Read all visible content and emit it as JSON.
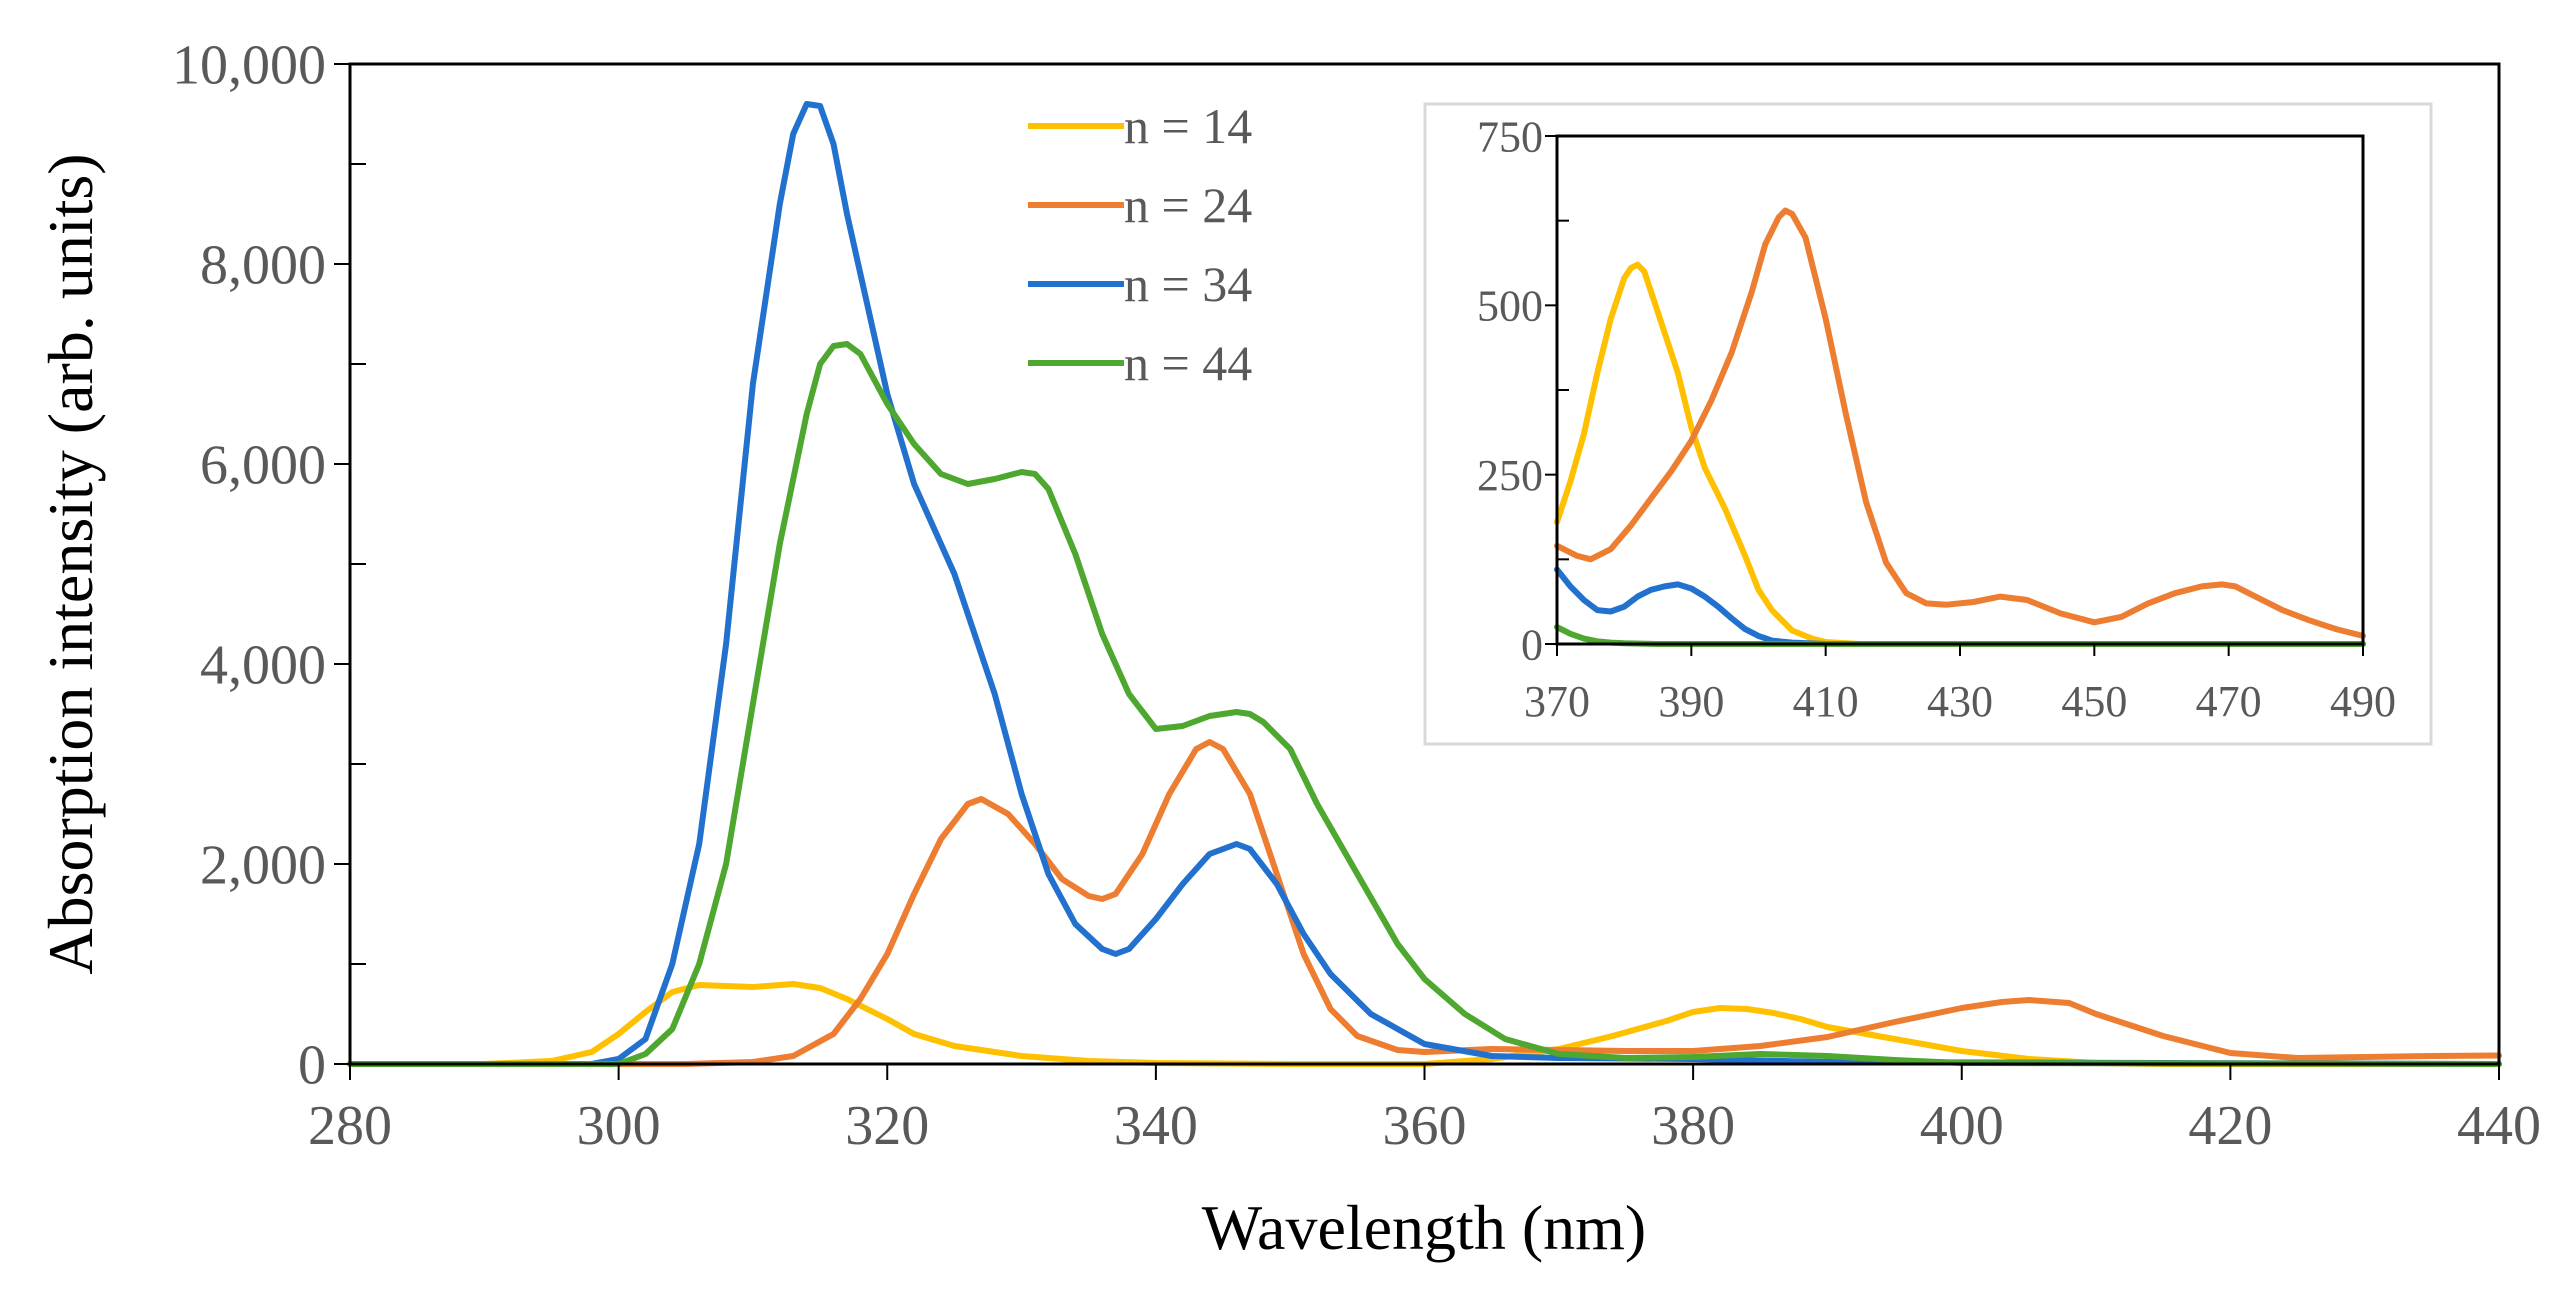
{
  "chart_data": [
    {
      "id": "main",
      "type": "line",
      "title": "",
      "xlabel": "Wavelength (nm)",
      "ylabel": "Absorption intensity (arb. units)",
      "xlim": [
        280,
        440
      ],
      "ylim": [
        0,
        10000
      ],
      "xticks": [
        280,
        300,
        320,
        340,
        360,
        380,
        400,
        420,
        440
      ],
      "yticks": [
        0,
        2000,
        4000,
        6000,
        8000,
        10000
      ],
      "xtick_labels": [
        "280",
        "300",
        "320",
        "340",
        "360",
        "380",
        "400",
        "420",
        "440"
      ],
      "ytick_labels": [
        "0",
        "2,000",
        "4,000",
        "6,000",
        "8,000",
        "10,000"
      ],
      "grid": false,
      "legend_position": "top-center",
      "series": [
        {
          "name": "n = 14",
          "color": "#FFC000",
          "x": [
            280,
            290,
            295,
            298,
            300,
            302,
            304,
            306,
            308,
            310,
            312,
            313,
            315,
            317,
            320,
            322,
            325,
            330,
            335,
            340,
            350,
            360,
            365,
            370,
            374,
            378,
            380,
            382,
            384,
            386,
            388,
            390,
            395,
            400,
            405,
            410,
            415,
            420,
            440
          ],
          "y": [
            0,
            0,
            30,
            120,
            300,
            520,
            720,
            790,
            780,
            770,
            790,
            800,
            760,
            650,
            450,
            300,
            180,
            80,
            30,
            10,
            0,
            0,
            50,
            150,
            280,
            430,
            520,
            560,
            550,
            510,
            450,
            370,
            250,
            130,
            50,
            10,
            0,
            0,
            0
          ]
        },
        {
          "name": "n = 24",
          "color": "#ED7D31",
          "x": [
            280,
            305,
            310,
            313,
            316,
            318,
            320,
            322,
            324,
            326,
            327,
            329,
            331,
            333,
            335,
            336,
            337,
            339,
            341,
            343,
            344,
            345,
            347,
            349,
            351,
            353,
            355,
            358,
            360,
            365,
            370,
            375,
            380,
            385,
            390,
            395,
            400,
            403,
            405,
            408,
            410,
            415,
            420,
            425,
            430,
            435,
            440
          ],
          "y": [
            0,
            0,
            20,
            80,
            300,
            650,
            1100,
            1700,
            2250,
            2600,
            2650,
            2500,
            2200,
            1850,
            1680,
            1650,
            1700,
            2100,
            2700,
            3150,
            3220,
            3150,
            2700,
            1900,
            1100,
            550,
            280,
            140,
            120,
            150,
            140,
            130,
            130,
            180,
            270,
            420,
            560,
            620,
            640,
            610,
            500,
            280,
            110,
            60,
            70,
            80,
            85
          ]
        },
        {
          "name": "n = 34",
          "color": "#2271CE",
          "x": [
            280,
            298,
            300,
            302,
            304,
            306,
            308,
            310,
            312,
            313,
            314,
            315,
            316,
            317,
            320,
            322,
            325,
            328,
            330,
            332,
            334,
            336,
            337,
            338,
            340,
            342,
            344,
            346,
            347,
            349,
            351,
            353,
            356,
            360,
            365,
            370,
            375,
            380,
            390,
            440
          ],
          "y": [
            0,
            0,
            50,
            250,
            1000,
            2200,
            4200,
            6800,
            8600,
            9300,
            9600,
            9580,
            9200,
            8500,
            6700,
            5800,
            4900,
            3700,
            2700,
            1900,
            1400,
            1150,
            1100,
            1150,
            1450,
            1800,
            2100,
            2200,
            2150,
            1800,
            1300,
            900,
            500,
            200,
            80,
            60,
            55,
            50,
            20,
            0
          ]
        },
        {
          "name": "n = 44",
          "color": "#4EA72E",
          "x": [
            280,
            300,
            302,
            304,
            306,
            308,
            310,
            312,
            314,
            315,
            316,
            317,
            318,
            320,
            322,
            324,
            326,
            328,
            330,
            331,
            332,
            334,
            336,
            338,
            340,
            342,
            344,
            346,
            347,
            348,
            350,
            352,
            355,
            358,
            360,
            363,
            366,
            370,
            375,
            380,
            385,
            390,
            395,
            400,
            440
          ],
          "y": [
            0,
            0,
            100,
            350,
            1000,
            2000,
            3600,
            5200,
            6500,
            7000,
            7180,
            7200,
            7100,
            6600,
            6200,
            5900,
            5800,
            5850,
            5920,
            5900,
            5750,
            5100,
            4300,
            3700,
            3350,
            3380,
            3480,
            3520,
            3500,
            3420,
            3150,
            2600,
            1900,
            1200,
            850,
            500,
            250,
            100,
            60,
            70,
            100,
            80,
            40,
            10,
            0
          ]
        }
      ]
    },
    {
      "id": "inset",
      "type": "line",
      "title": "",
      "xlabel": "",
      "ylabel": "",
      "xlim": [
        370,
        490
      ],
      "ylim": [
        0,
        750
      ],
      "xticks": [
        370,
        390,
        410,
        430,
        450,
        470,
        490
      ],
      "yticks": [
        0,
        250,
        500,
        750
      ],
      "xtick_labels": [
        "370",
        "390",
        "410",
        "430",
        "450",
        "470",
        "490"
      ],
      "ytick_labels": [
        "0",
        "250",
        "500",
        "750"
      ],
      "grid": false,
      "series": [
        {
          "name": "n = 14",
          "color": "#FFC000",
          "x": [
            370,
            372,
            374,
            376,
            378,
            380,
            381,
            382,
            383,
            385,
            388,
            390,
            392,
            395,
            398,
            400,
            402,
            405,
            408,
            410,
            415,
            420,
            490
          ],
          "y": [
            180,
            240,
            310,
            400,
            480,
            540,
            555,
            560,
            550,
            490,
            400,
            320,
            260,
            200,
            130,
            80,
            50,
            20,
            8,
            3,
            0,
            0,
            0
          ]
        },
        {
          "name": "n = 24",
          "color": "#ED7D31",
          "x": [
            370,
            373,
            375,
            378,
            381,
            384,
            387,
            390,
            393,
            396,
            399,
            401,
            403,
            404,
            405,
            407,
            410,
            413,
            416,
            419,
            422,
            425,
            428,
            432,
            436,
            440,
            445,
            450,
            454,
            458,
            462,
            466,
            469,
            471,
            474,
            478,
            482,
            486,
            490
          ],
          "y": [
            145,
            130,
            125,
            140,
            175,
            215,
            255,
            300,
            360,
            430,
            520,
            590,
            630,
            640,
            635,
            600,
            480,
            340,
            210,
            120,
            75,
            60,
            58,
            62,
            70,
            65,
            45,
            32,
            40,
            60,
            75,
            85,
            88,
            85,
            70,
            50,
            35,
            22,
            12
          ]
        },
        {
          "name": "n = 34",
          "color": "#2271CE",
          "x": [
            370,
            372,
            374,
            376,
            378,
            380,
            382,
            384,
            386,
            388,
            390,
            392,
            394,
            396,
            398,
            400,
            402,
            405,
            410,
            490
          ],
          "y": [
            110,
            85,
            65,
            50,
            48,
            55,
            70,
            80,
            85,
            88,
            82,
            70,
            55,
            38,
            22,
            12,
            5,
            2,
            0,
            0
          ]
        },
        {
          "name": "n = 44",
          "color": "#4EA72E",
          "x": [
            370,
            372,
            374,
            376,
            378,
            380,
            385,
            490
          ],
          "y": [
            25,
            15,
            8,
            4,
            2,
            1,
            0,
            0
          ]
        }
      ]
    }
  ]
}
